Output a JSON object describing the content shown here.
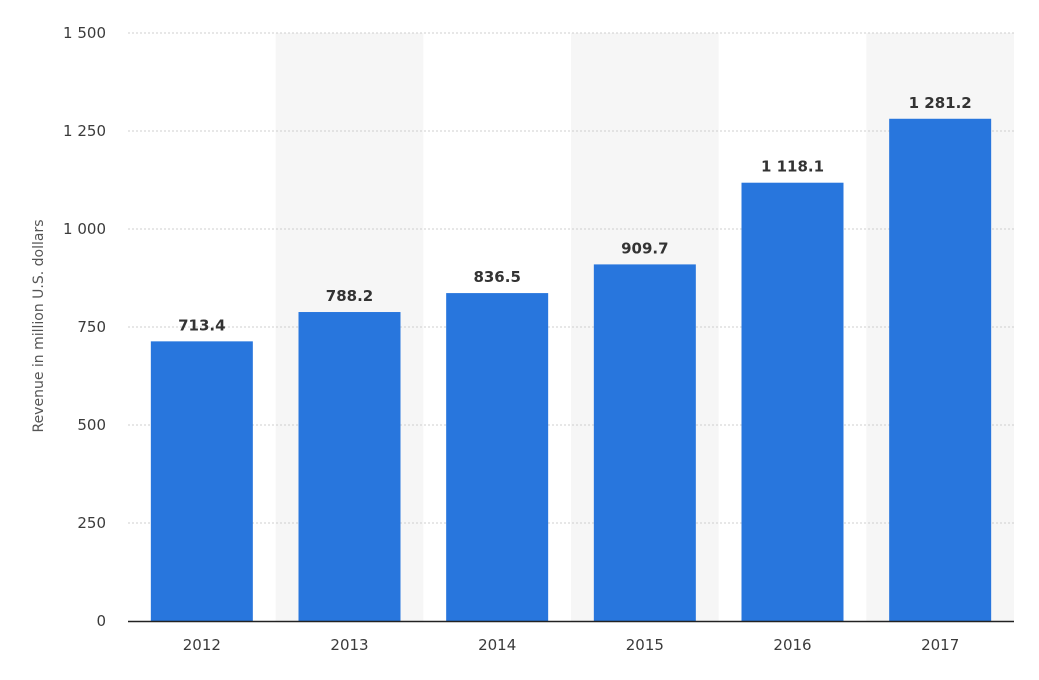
{
  "chart_data": {
    "type": "bar",
    "title": "",
    "xlabel": "",
    "ylabel": "Revenue in million U.S. dollars",
    "categories": [
      "2012",
      "2013",
      "2014",
      "2015",
      "2016",
      "2017"
    ],
    "values": [
      713.4,
      788.2,
      836.5,
      909.7,
      1118.1,
      1281.2
    ],
    "value_labels": [
      "713.4",
      "788.2",
      "836.5",
      "909.7",
      "1 118.1",
      "1 281.2"
    ],
    "ylim": [
      0,
      1500
    ],
    "yticks": [
      0,
      250,
      500,
      750,
      1000,
      1250,
      1500
    ],
    "ytick_labels": [
      "0",
      "250",
      "500",
      "750",
      "1 000",
      "1 250",
      "1 500"
    ],
    "grid": true,
    "colors": {
      "bar": "#2876dd",
      "band": "#f6f6f6",
      "grid": "#cfcfcf",
      "axis": "#222222"
    }
  }
}
